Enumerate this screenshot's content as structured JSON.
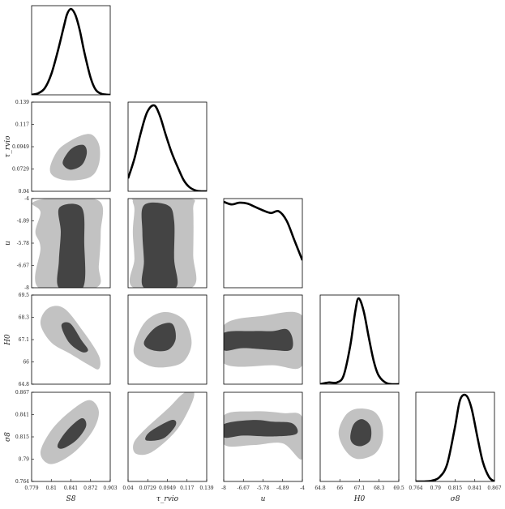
{
  "chart_data": {
    "type": "corner",
    "params": [
      {
        "key": "S8",
        "label": "S8",
        "range": [
          0.779,
          0.903
        ],
        "ticks": [
          "0.779",
          "0.81",
          "0.841",
          "0.872",
          "0.903"
        ]
      },
      {
        "key": "tau",
        "label": "τ_rvio",
        "range": [
          0.04,
          0.139
        ],
        "ticks": [
          "0.04",
          "0.0729",
          "0.0949",
          "0.117",
          "0.139"
        ]
      },
      {
        "key": "u",
        "label": "u",
        "range": [
          -8,
          -4
        ],
        "ticks": [
          "-8",
          "-6.67",
          "-5.78",
          "-4.89",
          "-4"
        ]
      },
      {
        "key": "H0",
        "label": "H0",
        "range": [
          64.8,
          69.5
        ],
        "ticks": [
          "64.8",
          "66",
          "67.1",
          "68.3",
          "69.5"
        ]
      },
      {
        "key": "sigma8",
        "label": "σ8",
        "range": [
          0.764,
          0.867
        ],
        "ticks": [
          "0.764",
          "0.79",
          "0.815",
          "0.841",
          "0.867"
        ]
      }
    ],
    "marginals": [
      {
        "param": "S8",
        "x": [
          0.779,
          0.79,
          0.8,
          0.81,
          0.82,
          0.83,
          0.835,
          0.841,
          0.848,
          0.855,
          0.862,
          0.872,
          0.88,
          0.89,
          0.903
        ],
        "y": [
          0.0,
          0.02,
          0.08,
          0.24,
          0.5,
          0.8,
          0.94,
          1.0,
          0.93,
          0.75,
          0.5,
          0.2,
          0.06,
          0.01,
          0.0
        ]
      },
      {
        "param": "tau",
        "x": [
          0.04,
          0.048,
          0.056,
          0.064,
          0.0729,
          0.08,
          0.087,
          0.0949,
          0.103,
          0.11,
          0.117,
          0.125,
          0.132,
          0.139
        ],
        "y": [
          0.15,
          0.38,
          0.68,
          0.92,
          1.0,
          0.88,
          0.67,
          0.45,
          0.27,
          0.13,
          0.05,
          0.01,
          0.0,
          0.0
        ]
      },
      {
        "param": "u",
        "x": [
          -8,
          -7.6,
          -7.2,
          -6.8,
          -6.4,
          -6.0,
          -5.6,
          -5.2,
          -4.8,
          -4.4,
          -4.0
        ],
        "y": [
          1.0,
          0.97,
          0.99,
          0.98,
          0.94,
          0.9,
          0.87,
          0.89,
          0.78,
          0.55,
          0.32
        ]
      },
      {
        "param": "H0",
        "x": [
          64.8,
          65.3,
          65.8,
          66.2,
          66.6,
          66.9,
          67.1,
          67.4,
          67.7,
          68.0,
          68.3,
          68.8,
          69.5
        ],
        "y": [
          0.0,
          0.02,
          0.02,
          0.1,
          0.45,
          0.85,
          1.0,
          0.85,
          0.55,
          0.27,
          0.1,
          0.01,
          0.0
        ]
      },
      {
        "param": "sigma8",
        "x": [
          0.764,
          0.775,
          0.785,
          0.795,
          0.805,
          0.815,
          0.822,
          0.83,
          0.837,
          0.845,
          0.852,
          0.86,
          0.867
        ],
        "y": [
          0.0,
          0.0,
          0.01,
          0.05,
          0.2,
          0.62,
          0.95,
          1.0,
          0.85,
          0.5,
          0.22,
          0.05,
          0.0
        ]
      }
    ],
    "contours": [
      {
        "x": "S8",
        "y": "tau",
        "outer": [
          [
            0.808,
            0.066
          ],
          [
            0.82,
            0.085
          ],
          [
            0.84,
            0.096
          ],
          [
            0.862,
            0.103
          ],
          [
            0.876,
            0.102
          ],
          [
            0.886,
            0.09
          ],
          [
            0.885,
            0.07
          ],
          [
            0.872,
            0.056
          ],
          [
            0.84,
            0.052
          ],
          [
            0.815,
            0.056
          ]
        ],
        "inner": [
          [
            0.828,
            0.071
          ],
          [
            0.836,
            0.083
          ],
          [
            0.848,
            0.09
          ],
          [
            0.862,
            0.091
          ],
          [
            0.866,
            0.082
          ],
          [
            0.858,
            0.069
          ],
          [
            0.84,
            0.064
          ]
        ]
      },
      {
        "x": "S8",
        "y": "u",
        "outer": [
          [
            0.78,
            -4.2
          ],
          [
            0.81,
            -4.0
          ],
          [
            0.885,
            -4.1
          ],
          [
            0.888,
            -5.5
          ],
          [
            0.885,
            -7.0
          ],
          [
            0.88,
            -8.0
          ],
          [
            0.79,
            -8.0
          ],
          [
            0.793,
            -6.2
          ],
          [
            0.785,
            -5.5
          ],
          [
            0.793,
            -4.6
          ]
        ],
        "inner": [
          [
            0.823,
            -4.4
          ],
          [
            0.858,
            -4.4
          ],
          [
            0.862,
            -6.0
          ],
          [
            0.86,
            -8.0
          ],
          [
            0.822,
            -8.0
          ],
          [
            0.822,
            -6.8
          ],
          [
            0.825,
            -5.5
          ]
        ]
      },
      {
        "x": "S8",
        "y": "H0",
        "outer": [
          [
            0.793,
            68.0
          ],
          [
            0.805,
            68.8
          ],
          [
            0.83,
            68.8
          ],
          [
            0.86,
            67.6
          ],
          [
            0.885,
            66.3
          ],
          [
            0.885,
            65.6
          ],
          [
            0.87,
            65.8
          ],
          [
            0.84,
            66.4
          ],
          [
            0.81,
            67.0
          ]
        ],
        "inner": [
          [
            0.826,
            67.9
          ],
          [
            0.84,
            68.0
          ],
          [
            0.858,
            67.1
          ],
          [
            0.868,
            66.6
          ],
          [
            0.858,
            66.5
          ],
          [
            0.838,
            67.0
          ]
        ]
      },
      {
        "x": "S8",
        "y": "sigma8",
        "outer": [
          [
            0.793,
            0.797
          ],
          [
            0.81,
            0.823
          ],
          [
            0.84,
            0.845
          ],
          [
            0.87,
            0.858
          ],
          [
            0.885,
            0.845
          ],
          [
            0.875,
            0.822
          ],
          [
            0.845,
            0.797
          ],
          [
            0.81,
            0.784
          ]
        ],
        "inner": [
          [
            0.82,
            0.806
          ],
          [
            0.835,
            0.823
          ],
          [
            0.858,
            0.837
          ],
          [
            0.865,
            0.828
          ],
          [
            0.85,
            0.812
          ],
          [
            0.828,
            0.802
          ]
        ]
      },
      {
        "x": "tau",
        "y": "u",
        "outer": [
          [
            0.046,
            -4.1
          ],
          [
            0.052,
            -4.0
          ],
          [
            0.118,
            -4.0
          ],
          [
            0.122,
            -4.5
          ],
          [
            0.122,
            -6.5
          ],
          [
            0.12,
            -8.0
          ],
          [
            0.047,
            -8.0
          ],
          [
            0.048,
            -6.7
          ],
          [
            0.046,
            -5.5
          ],
          [
            0.048,
            -4.5
          ]
        ],
        "inner": [
          [
            0.06,
            -4.3
          ],
          [
            0.09,
            -4.3
          ],
          [
            0.098,
            -5.0
          ],
          [
            0.098,
            -6.7
          ],
          [
            0.1,
            -8.0
          ],
          [
            0.06,
            -8.0
          ],
          [
            0.06,
            -6.8
          ],
          [
            0.058,
            -5.5
          ]
        ]
      },
      {
        "x": "tau",
        "y": "H0",
        "outer": [
          [
            0.047,
            66.5
          ],
          [
            0.06,
            68.0
          ],
          [
            0.085,
            68.6
          ],
          [
            0.11,
            68.2
          ],
          [
            0.12,
            67.0
          ],
          [
            0.11,
            66.0
          ],
          [
            0.088,
            65.7
          ],
          [
            0.065,
            65.8
          ]
        ],
        "inner": [
          [
            0.06,
            67.0
          ],
          [
            0.075,
            67.8
          ],
          [
            0.095,
            68.0
          ],
          [
            0.1,
            67.2
          ],
          [
            0.09,
            66.6
          ],
          [
            0.07,
            66.6
          ]
        ]
      },
      {
        "x": "tau",
        "y": "sigma8",
        "outer": [
          [
            0.047,
            0.808
          ],
          [
            0.06,
            0.823
          ],
          [
            0.09,
            0.848
          ],
          [
            0.11,
            0.866
          ],
          [
            0.123,
            0.867
          ],
          [
            0.118,
            0.85
          ],
          [
            0.1,
            0.822
          ],
          [
            0.07,
            0.798
          ],
          [
            0.05,
            0.796
          ]
        ],
        "inner": [
          [
            0.062,
            0.815
          ],
          [
            0.07,
            0.823
          ],
          [
            0.095,
            0.835
          ],
          [
            0.1,
            0.829
          ],
          [
            0.085,
            0.814
          ],
          [
            0.065,
            0.811
          ]
        ]
      },
      {
        "x": "u",
        "y": "H0",
        "outer": [
          [
            -8.0,
            67.9
          ],
          [
            -6.0,
            68.4
          ],
          [
            -4.0,
            68.4
          ],
          [
            -4.0,
            65.8
          ],
          [
            -5.5,
            65.8
          ],
          [
            -8.0,
            65.9
          ]
        ],
        "inner": [
          [
            -8.0,
            67.5
          ],
          [
            -6.5,
            67.6
          ],
          [
            -5.5,
            67.6
          ],
          [
            -4.8,
            67.7
          ],
          [
            -4.5,
            67.2
          ],
          [
            -4.6,
            66.6
          ],
          [
            -5.5,
            66.6
          ],
          [
            -7.0,
            66.7
          ],
          [
            -8.0,
            66.6
          ]
        ]
      },
      {
        "x": "u",
        "y": "sigma8",
        "outer": [
          [
            -8.0,
            0.84
          ],
          [
            -6.5,
            0.845
          ],
          [
            -5.0,
            0.843
          ],
          [
            -4.0,
            0.838
          ],
          [
            -4.0,
            0.79
          ],
          [
            -5.0,
            0.808
          ],
          [
            -6.5,
            0.806
          ],
          [
            -8.0,
            0.807
          ]
        ],
        "inner": [
          [
            -8.0,
            0.83
          ],
          [
            -6.5,
            0.835
          ],
          [
            -5.5,
            0.833
          ],
          [
            -4.5,
            0.831
          ],
          [
            -4.3,
            0.819
          ],
          [
            -5.5,
            0.816
          ],
          [
            -7.0,
            0.817
          ],
          [
            -8.0,
            0.815
          ]
        ]
      },
      {
        "x": "H0",
        "y": "sigma8",
        "outer": [
          [
            65.9,
            0.82
          ],
          [
            66.3,
            0.84
          ],
          [
            67.0,
            0.848
          ],
          [
            68.0,
            0.845
          ],
          [
            68.5,
            0.83
          ],
          [
            68.5,
            0.81
          ],
          [
            68.0,
            0.795
          ],
          [
            67.0,
            0.79
          ],
          [
            66.3,
            0.8
          ]
        ],
        "inner": [
          [
            66.6,
            0.815
          ],
          [
            66.8,
            0.83
          ],
          [
            67.3,
            0.836
          ],
          [
            67.8,
            0.828
          ],
          [
            67.8,
            0.812
          ],
          [
            67.3,
            0.805
          ],
          [
            66.8,
            0.807
          ]
        ]
      }
    ],
    "colors": {
      "outer": "#c2c2c2",
      "inner": "#444444",
      "line": "#000000",
      "frame": "#000000"
    }
  }
}
